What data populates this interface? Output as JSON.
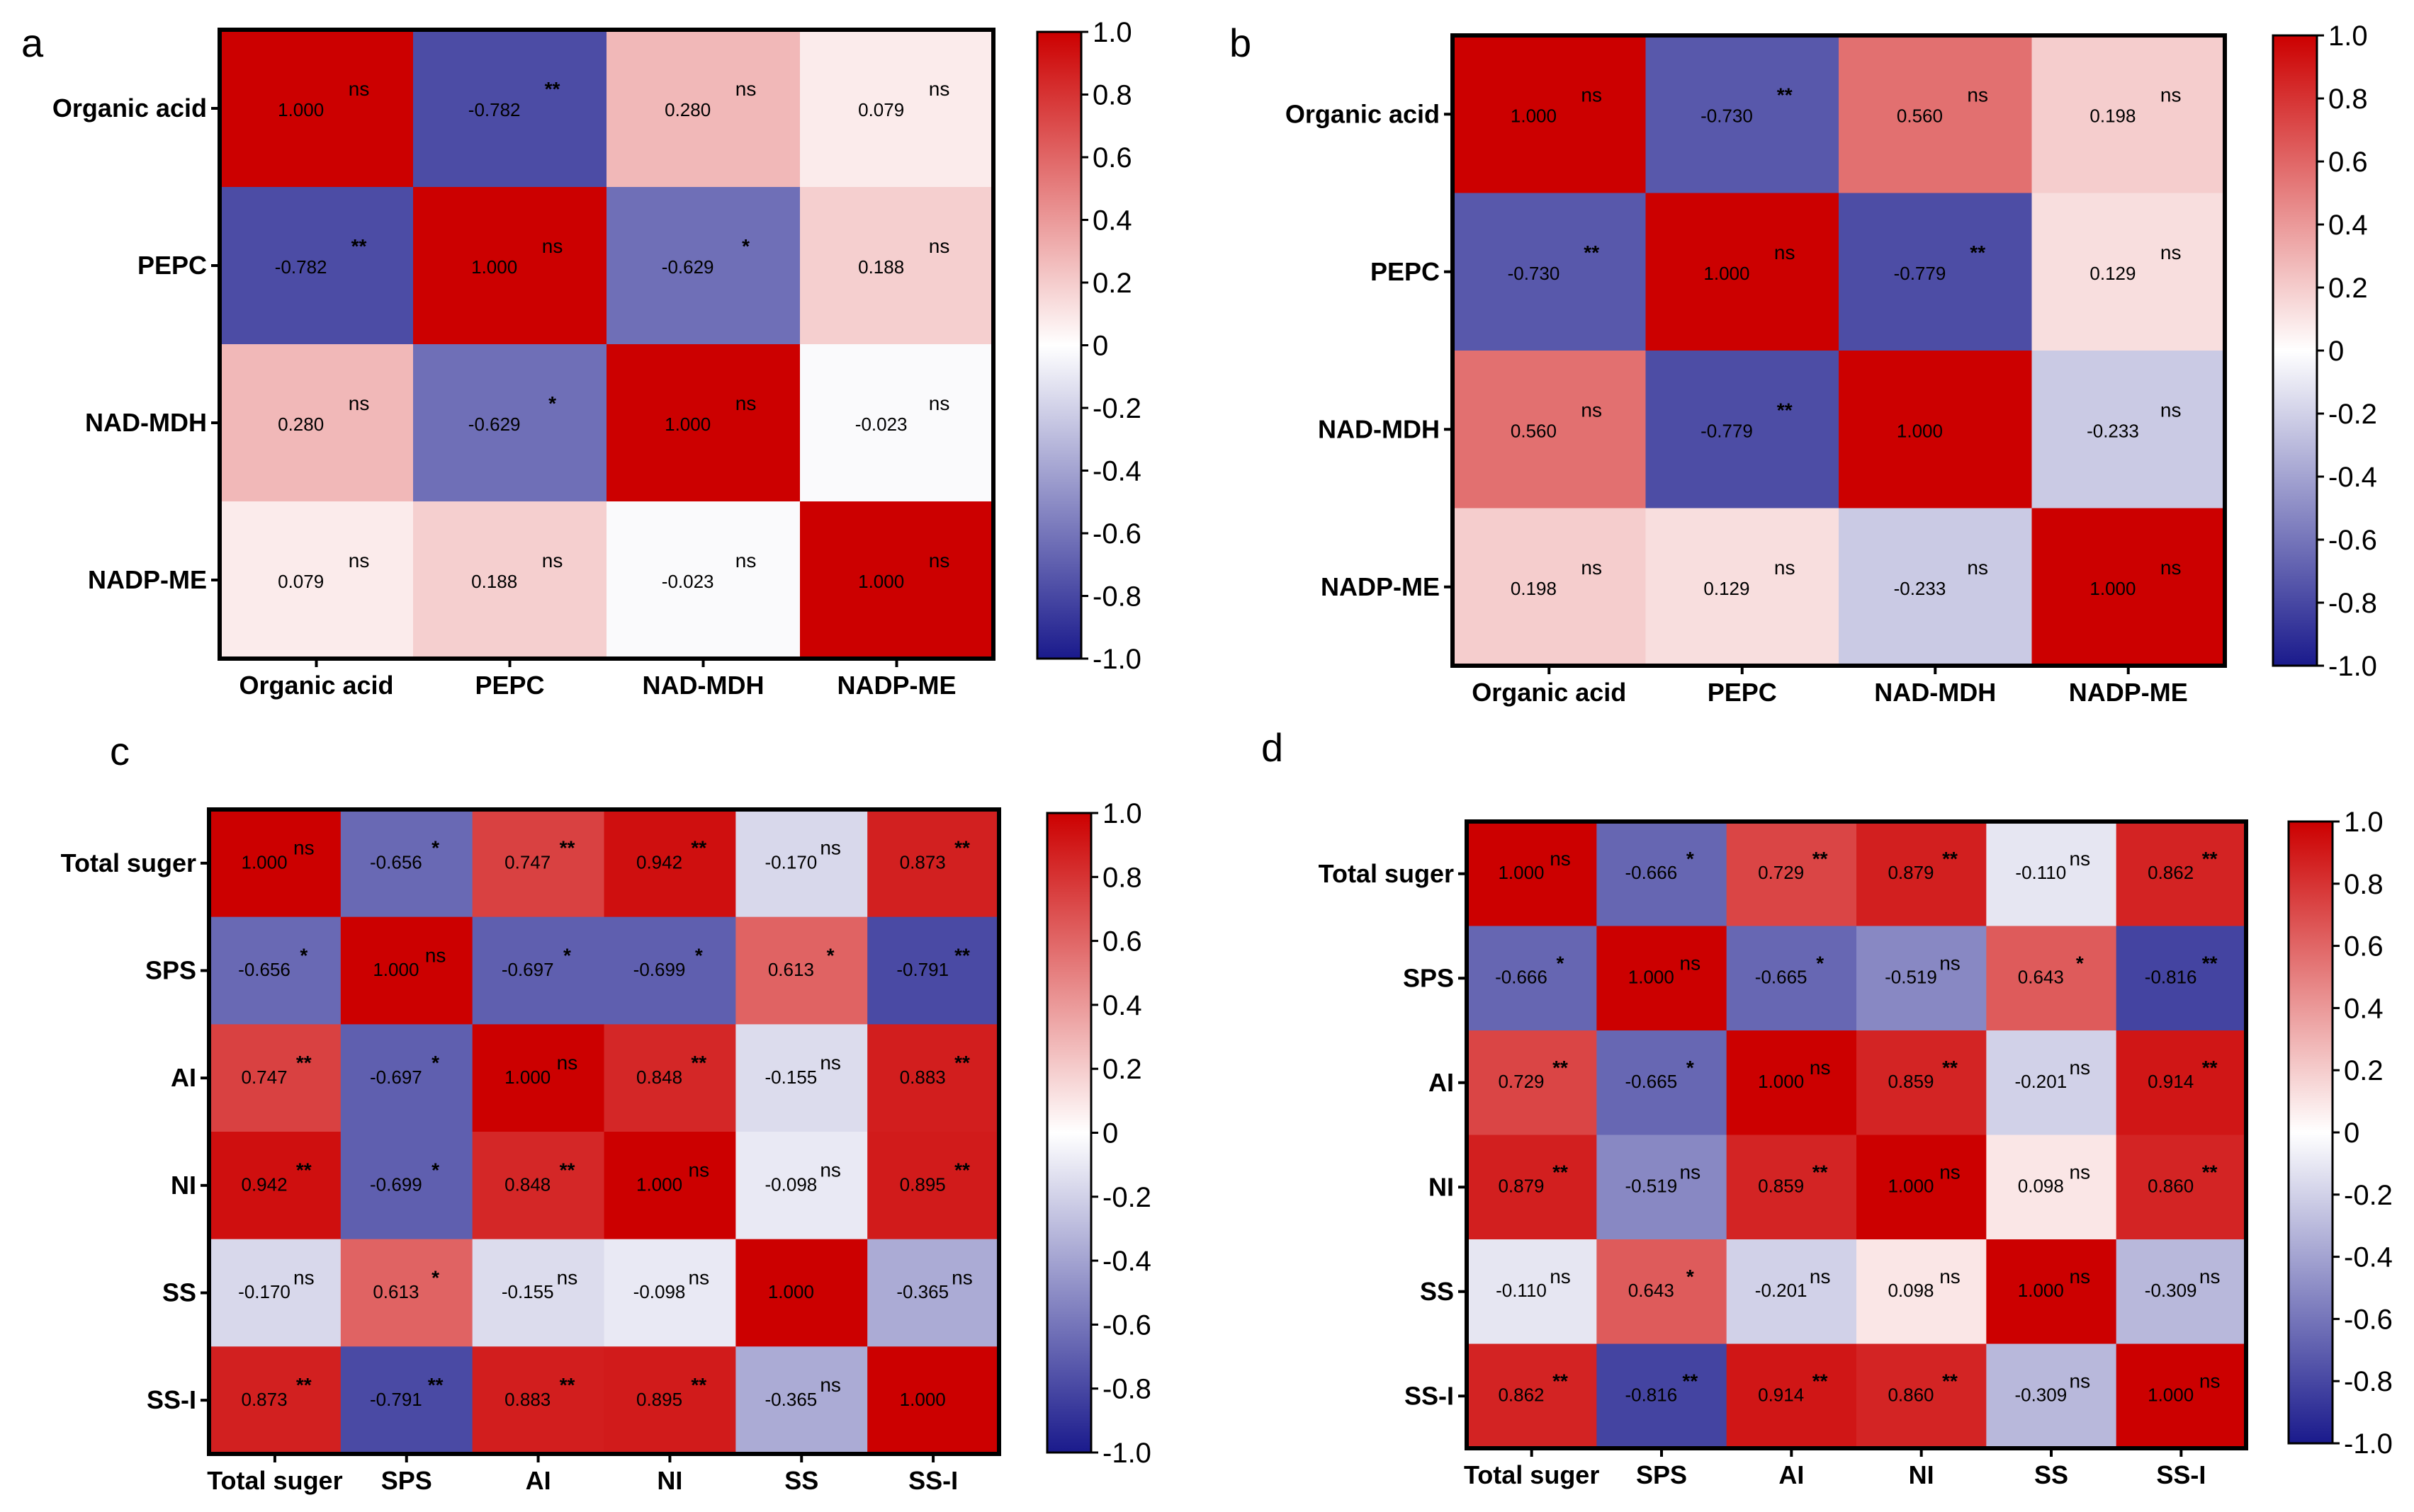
{
  "figure": {
    "panels": [
      "a",
      "b",
      "c",
      "d"
    ]
  },
  "chart_data": [
    {
      "panel": "a",
      "type": "heatmap",
      "labels": [
        "Organic acid",
        "PEPC",
        "NAD-MDH",
        "NADP-ME"
      ],
      "values": [
        [
          1.0,
          -0.782,
          0.28,
          0.079
        ],
        [
          -0.782,
          1.0,
          -0.629,
          0.188
        ],
        [
          0.28,
          -0.629,
          1.0,
          -0.023
        ],
        [
          0.079,
          0.188,
          -0.023,
          1.0
        ]
      ],
      "display": [
        [
          "1.000",
          "-0.782",
          "0.280",
          "0.079"
        ],
        [
          "-0.782",
          "1.000",
          "-0.629",
          "0.188"
        ],
        [
          "0.280",
          "-0.629",
          "1.000",
          "-0.023"
        ],
        [
          "0.079",
          "0.188",
          "-0.023",
          "1.000"
        ]
      ],
      "significance": [
        [
          "ns",
          "**",
          "ns",
          "ns"
        ],
        [
          "**",
          "ns",
          "*",
          "ns"
        ],
        [
          "ns",
          "*",
          "ns",
          "ns"
        ],
        [
          "ns",
          "ns",
          "ns",
          "ns"
        ]
      ],
      "colorbar": {
        "range": [
          -1.0,
          1.0
        ],
        "ticks": [
          "1.0",
          "0.8",
          "0.6",
          "0.4",
          "0.2",
          "0",
          "-0.2",
          "-0.4",
          "-0.6",
          "-0.8",
          "-1.0"
        ]
      }
    },
    {
      "panel": "b",
      "type": "heatmap",
      "labels": [
        "Organic acid",
        "PEPC",
        "NAD-MDH",
        "NADP-ME"
      ],
      "values": [
        [
          1.0,
          -0.73,
          0.56,
          0.198
        ],
        [
          -0.73,
          1.0,
          -0.779,
          0.129
        ],
        [
          0.56,
          -0.779,
          1.0,
          -0.233
        ],
        [
          0.198,
          0.129,
          -0.233,
          1.0
        ]
      ],
      "display": [
        [
          "1.000",
          "-0.730",
          "0.560",
          "0.198"
        ],
        [
          "-0.730",
          "1.000",
          "-0.779",
          "0.129"
        ],
        [
          "0.560",
          "-0.779",
          "1.000",
          "-0.233"
        ],
        [
          "0.198",
          "0.129",
          "-0.233",
          "1.000"
        ]
      ],
      "significance": [
        [
          "ns",
          "**",
          "ns",
          "ns"
        ],
        [
          "**",
          "ns",
          "**",
          "ns"
        ],
        [
          "ns",
          "**",
          "",
          "ns"
        ],
        [
          "ns",
          "ns",
          "ns",
          "ns"
        ]
      ],
      "colorbar": {
        "range": [
          -1.0,
          1.0
        ],
        "ticks": [
          "1.0",
          "0.8",
          "0.6",
          "0.4",
          "0.2",
          "0",
          "-0.2",
          "-0.4",
          "-0.6",
          "-0.8",
          "-1.0"
        ]
      }
    },
    {
      "panel": "c",
      "type": "heatmap",
      "labels": [
        "Total suger",
        "SPS",
        "AI",
        "NI",
        "SS",
        "SS-I"
      ],
      "values": [
        [
          1.0,
          -0.656,
          0.747,
          0.942,
          -0.17,
          0.873
        ],
        [
          -0.656,
          1.0,
          -0.697,
          -0.699,
          0.613,
          -0.791
        ],
        [
          0.747,
          -0.697,
          1.0,
          0.848,
          -0.155,
          0.883
        ],
        [
          0.942,
          -0.699,
          0.848,
          1.0,
          -0.098,
          0.895
        ],
        [
          -0.17,
          0.613,
          -0.155,
          -0.098,
          1.0,
          -0.365
        ],
        [
          0.873,
          -0.791,
          0.883,
          0.895,
          -0.365,
          1.0
        ]
      ],
      "display": [
        [
          "1.000",
          "-0.656",
          "0.747",
          "0.942",
          "-0.170",
          "0.873"
        ],
        [
          "-0.656",
          "1.000",
          "-0.697",
          "-0.699",
          "0.613",
          "-0.791"
        ],
        [
          "0.747",
          "-0.697",
          "1.000",
          "0.848",
          "-0.155",
          "0.883"
        ],
        [
          "0.942",
          "-0.699",
          "0.848",
          "1.000",
          "-0.098",
          "0.895"
        ],
        [
          "-0.170",
          "0.613",
          "-0.155",
          "-0.098",
          "1.000",
          "-0.365"
        ],
        [
          "0.873",
          "-0.791",
          "0.883",
          "0.895",
          "-0.365",
          "1.000"
        ]
      ],
      "significance": [
        [
          "ns",
          "*",
          "**",
          "**",
          "ns",
          "**"
        ],
        [
          "*",
          "ns",
          "*",
          "*",
          "*",
          "**"
        ],
        [
          "**",
          "*",
          "ns",
          "**",
          "ns",
          "**"
        ],
        [
          "**",
          "*",
          "**",
          "ns",
          "ns",
          "**"
        ],
        [
          "ns",
          "*",
          "ns",
          "ns",
          "",
          "ns"
        ],
        [
          "**",
          "**",
          "**",
          "**",
          "ns",
          ""
        ]
      ],
      "colorbar": {
        "range": [
          -1.0,
          1.0
        ],
        "ticks": [
          "1.0",
          "0.8",
          "0.6",
          "0.4",
          "0.2",
          "0",
          "-0.2",
          "-0.4",
          "-0.6",
          "-0.8",
          "-1.0"
        ]
      }
    },
    {
      "panel": "d",
      "type": "heatmap",
      "labels": [
        "Total suger",
        "SPS",
        "AI",
        "NI",
        "SS",
        "SS-I"
      ],
      "values": [
        [
          1.0,
          -0.666,
          0.729,
          0.879,
          -0.11,
          0.862
        ],
        [
          -0.666,
          1.0,
          -0.665,
          -0.519,
          0.643,
          -0.816
        ],
        [
          0.729,
          -0.665,
          1.0,
          0.859,
          -0.201,
          0.914
        ],
        [
          0.879,
          -0.519,
          0.859,
          1.0,
          0.098,
          0.86
        ],
        [
          -0.11,
          0.643,
          -0.201,
          0.098,
          1.0,
          -0.309
        ],
        [
          0.862,
          -0.816,
          0.914,
          0.86,
          -0.309,
          1.0
        ]
      ],
      "display": [
        [
          "1.000",
          "-0.666",
          "0.729",
          "0.879",
          "-0.110",
          "0.862"
        ],
        [
          "-0.666",
          "1.000",
          "-0.665",
          "-0.519",
          "0.643",
          "-0.816"
        ],
        [
          "0.729",
          "-0.665",
          "1.000",
          "0.859",
          "-0.201",
          "0.914"
        ],
        [
          "0.879",
          "-0.519",
          "0.859",
          "1.000",
          "0.098",
          "0.860"
        ],
        [
          "-0.110",
          "0.643",
          "-0.201",
          "0.098",
          "1.000",
          "-0.309"
        ],
        [
          "0.862",
          "-0.816",
          "0.914",
          "0.860",
          "-0.309",
          "1.000"
        ]
      ],
      "significance": [
        [
          "ns",
          "*",
          "**",
          "**",
          "ns",
          "**"
        ],
        [
          "*",
          "ns",
          "*",
          "ns",
          "*",
          "**"
        ],
        [
          "**",
          "*",
          "ns",
          "**",
          "ns",
          "**"
        ],
        [
          "**",
          "ns",
          "**",
          "ns",
          "ns",
          "**"
        ],
        [
          "ns",
          "*",
          "ns",
          "ns",
          "ns",
          "ns"
        ],
        [
          "**",
          "**",
          "**",
          "**",
          "ns",
          "ns"
        ]
      ],
      "colorbar": {
        "range": [
          -1.0,
          1.0
        ],
        "ticks": [
          "1.0",
          "0.8",
          "0.6",
          "0.4",
          "0.2",
          "0",
          "-0.2",
          "-0.4",
          "-0.6",
          "-0.8",
          "-1.0"
        ]
      }
    }
  ],
  "colors": {
    "positive": "#cc0000",
    "neutral": "#ffffff",
    "negative": "#1a1a8c",
    "border": "#000000"
  }
}
